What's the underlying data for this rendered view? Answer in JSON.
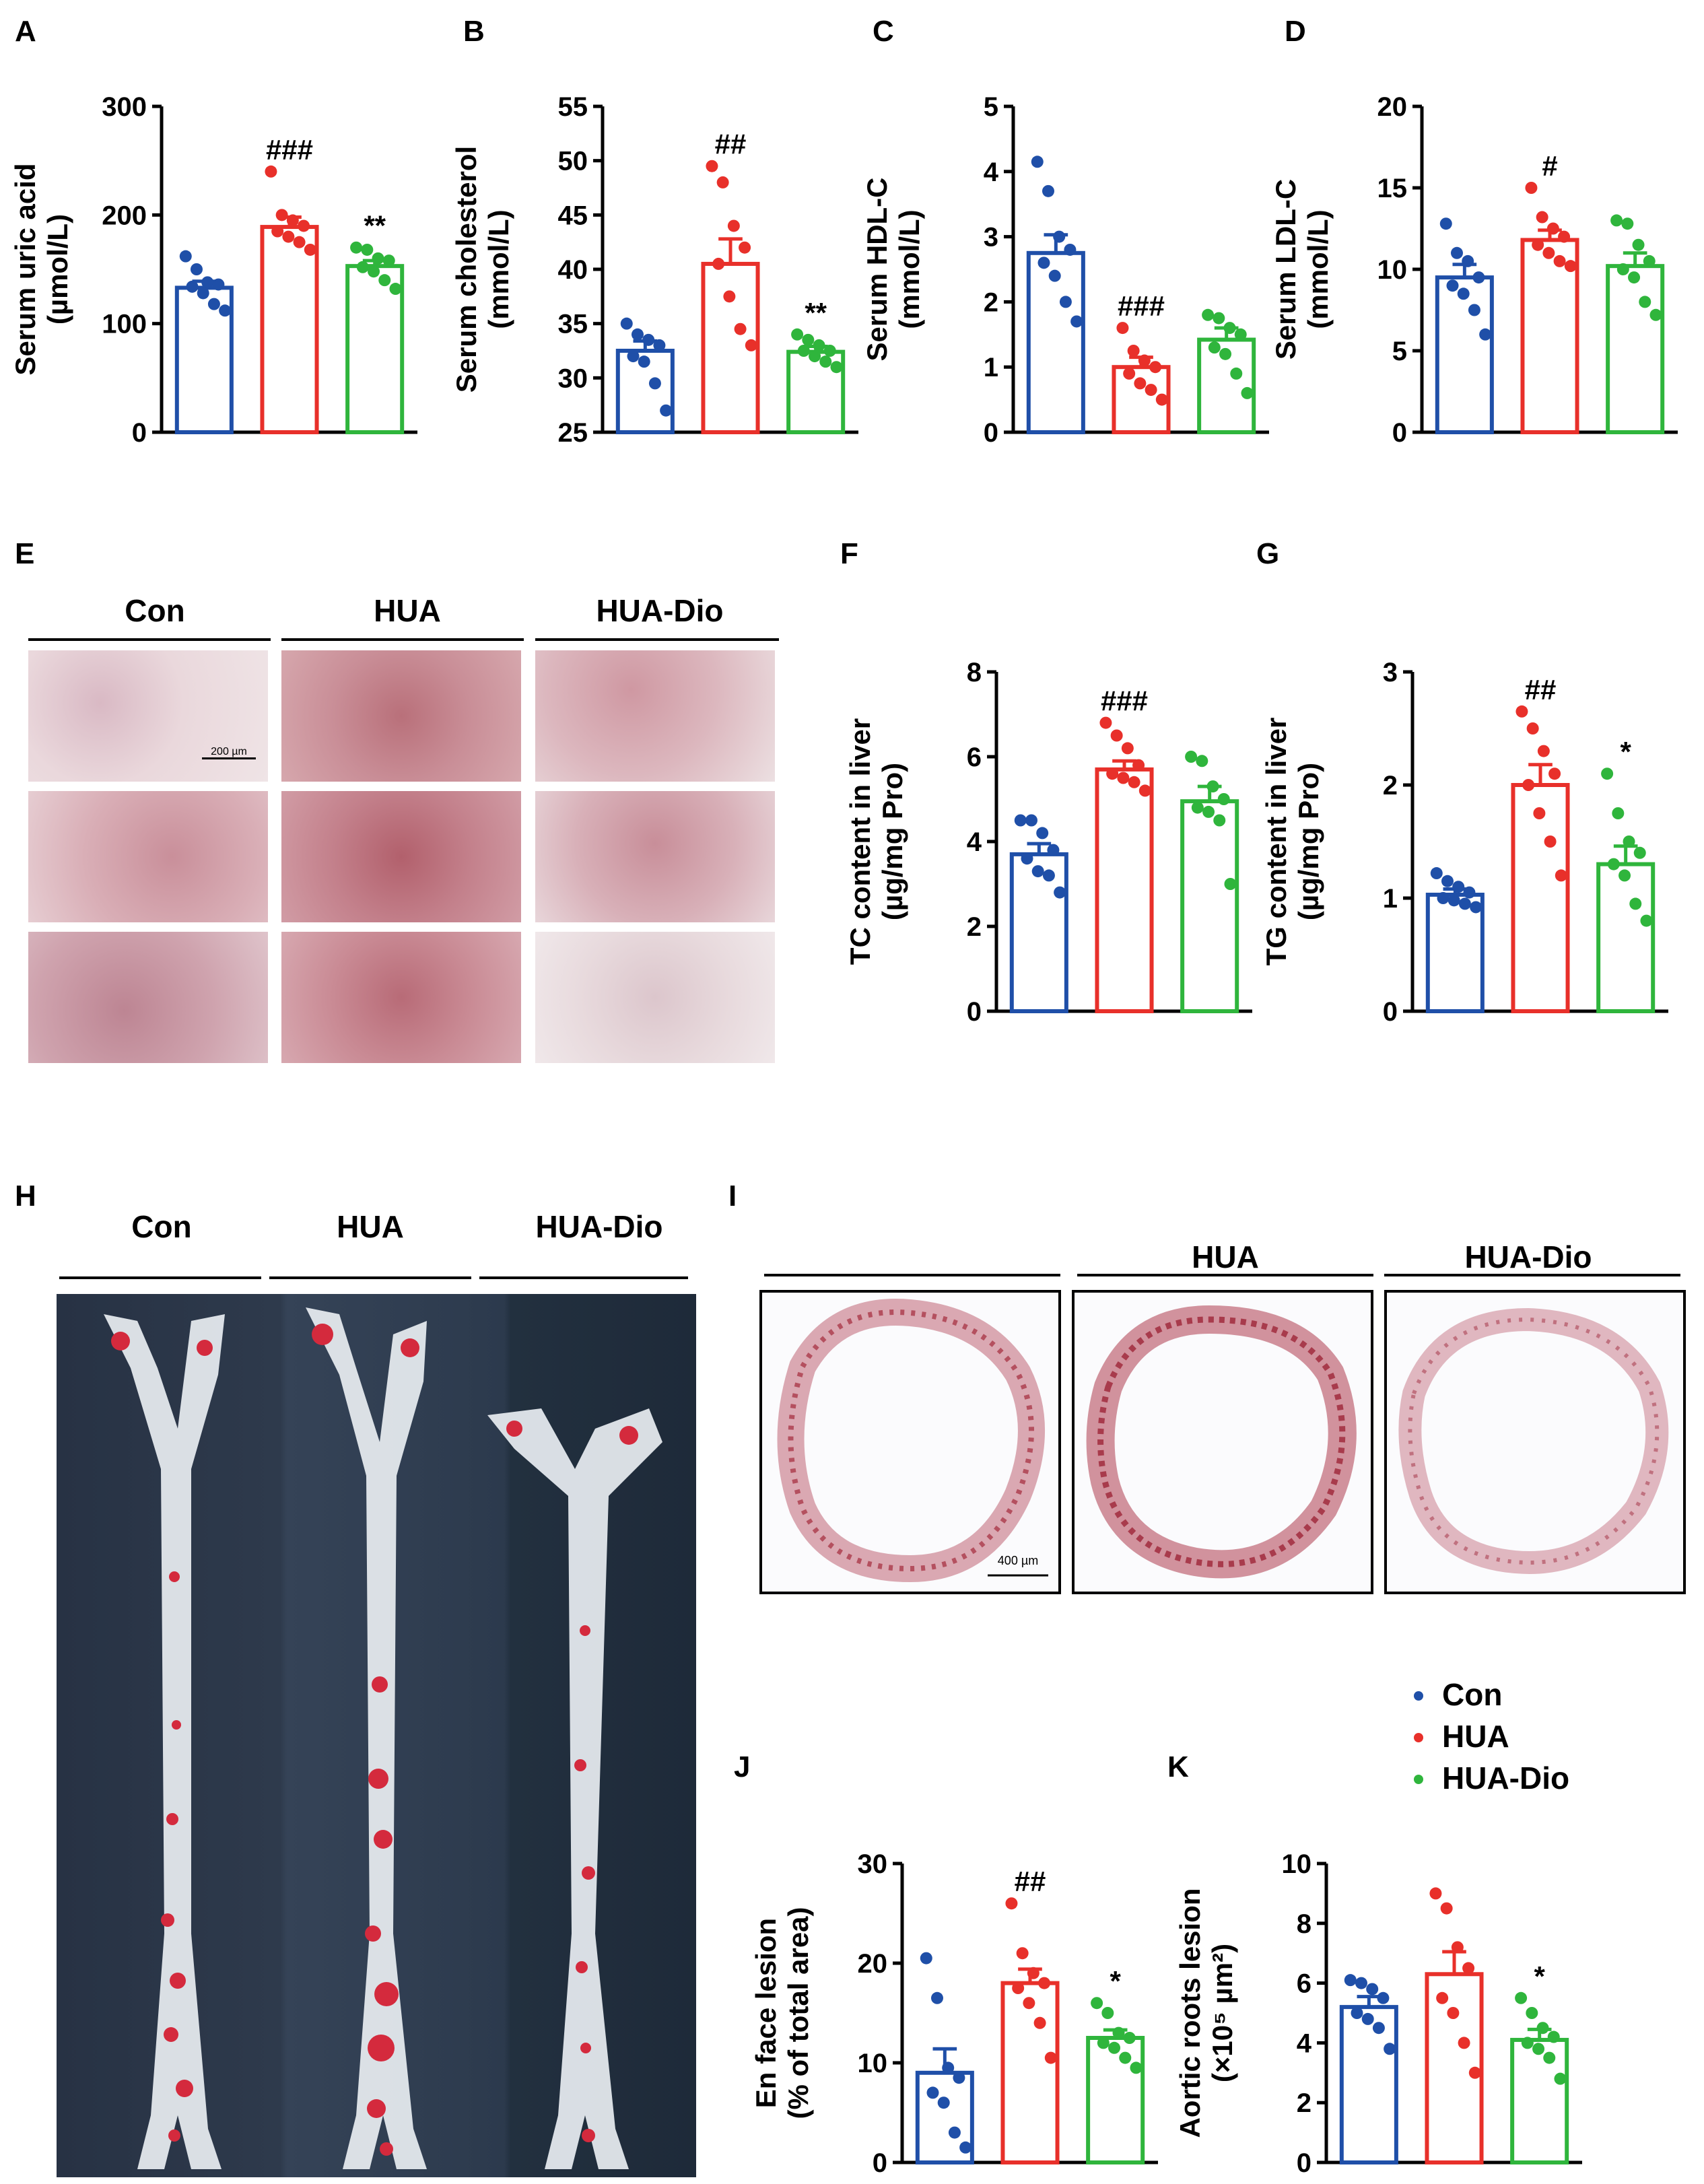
{
  "panels": {
    "A": "A",
    "B": "B",
    "C": "C",
    "D": "D",
    "E": "E",
    "F": "F",
    "G": "G",
    "H": "H",
    "I": "I",
    "J": "J",
    "K": "K"
  },
  "groups": [
    "Con",
    "HUA",
    "HUA-Dio"
  ],
  "colors": {
    "Con": "#1f4fa8",
    "HUA": "#e8302a",
    "HUA-Dio": "#2fb53c"
  },
  "panel_E": {
    "labels": [
      "Con",
      "HUA",
      "HUA-Dio"
    ],
    "scalebar": "200 µm"
  },
  "panel_H": {
    "labels": [
      "Con",
      "HUA",
      "HUA-Dio"
    ]
  },
  "panel_I": {
    "labels": [
      "",
      "HUA",
      "HUA-Dio"
    ],
    "scalebar": "400 µm"
  },
  "legend": {
    "items": [
      "Con",
      "HUA",
      "HUA-Dio"
    ]
  },
  "chart_data": [
    {
      "id": "A",
      "type": "bar",
      "ylabel": [
        "Serum uric acid",
        "(µmol/L)"
      ],
      "ylim": [
        0,
        300
      ],
      "yticks": [
        0,
        100,
        200,
        300
      ],
      "categories": [
        "Con",
        "HUA",
        "HUA-Dio"
      ],
      "means": [
        133,
        189,
        153
      ],
      "sem": [
        6,
        9,
        5
      ],
      "points": [
        [
          162,
          150,
          138,
          136,
          134,
          128,
          118,
          112
        ],
        [
          240,
          200,
          195,
          190,
          185,
          180,
          175,
          168
        ],
        [
          170,
          168,
          160,
          158,
          152,
          148,
          140,
          132
        ]
      ],
      "annotations": [
        "",
        "###",
        "**"
      ]
    },
    {
      "id": "B",
      "type": "bar",
      "ylabel": [
        "Serum cholesterol",
        "(mmol/L)"
      ],
      "ylim": [
        25,
        55
      ],
      "yticks": [
        25,
        30,
        35,
        40,
        45,
        50,
        55
      ],
      "categories": [
        "Con",
        "HUA",
        "HUA-Dio"
      ],
      "means": [
        32.5,
        40.5,
        32.4
      ],
      "sem": [
        0.9,
        2.3,
        0.5
      ],
      "points": [
        [
          35,
          34,
          33.5,
          33,
          32,
          31.5,
          29.5,
          27
        ],
        [
          49.5,
          48,
          44,
          42,
          40.5,
          37.5,
          34.5,
          33
        ],
        [
          34,
          33.5,
          33,
          32.5,
          32.5,
          32,
          31.5,
          31
        ]
      ],
      "annotations": [
        "",
        "##",
        "**"
      ]
    },
    {
      "id": "C",
      "type": "bar",
      "ylabel": [
        "Serum HDL-C",
        "(mmol/L)"
      ],
      "ylim": [
        0,
        5
      ],
      "yticks": [
        0,
        1,
        2,
        3,
        4,
        5
      ],
      "categories": [
        "Con",
        "HUA",
        "HUA-Dio"
      ],
      "means": [
        2.75,
        1.0,
        1.42
      ],
      "sem": [
        0.28,
        0.15,
        0.18
      ],
      "points": [
        [
          4.15,
          3.7,
          3.0,
          2.8,
          2.6,
          2.4,
          2.0,
          1.7
        ],
        [
          1.6,
          1.25,
          1.1,
          1.0,
          0.9,
          0.75,
          0.65,
          0.5
        ],
        [
          1.8,
          1.75,
          1.6,
          1.5,
          1.3,
          1.2,
          0.9,
          0.6
        ]
      ],
      "annotations": [
        "",
        "###",
        ""
      ]
    },
    {
      "id": "D",
      "type": "bar",
      "ylabel": [
        "Serum LDL-C",
        "(mmol/L)"
      ],
      "ylim": [
        0,
        20
      ],
      "yticks": [
        0,
        5,
        10,
        15,
        20
      ],
      "categories": [
        "Con",
        "HUA",
        "HUA-Dio"
      ],
      "means": [
        9.5,
        11.8,
        10.2
      ],
      "sem": [
        0.8,
        0.6,
        0.8
      ],
      "points": [
        [
          12.8,
          11,
          10.5,
          9.5,
          9.0,
          8.5,
          7.5,
          6.0
        ],
        [
          15,
          13.2,
          12.5,
          12,
          11.5,
          11,
          10.5,
          10.2
        ],
        [
          13,
          12.8,
          11.5,
          10.5,
          10,
          9.5,
          8.0,
          7.2
        ]
      ],
      "annotations": [
        "",
        "#",
        ""
      ]
    },
    {
      "id": "F",
      "type": "bar",
      "ylabel": [
        "TC content in liver",
        "(µg/mg Pro)"
      ],
      "ylim": [
        0,
        8
      ],
      "yticks": [
        0,
        2,
        4,
        6,
        8
      ],
      "categories": [
        "Con",
        "HUA",
        "HUA-Dio"
      ],
      "means": [
        3.7,
        5.7,
        4.95
      ],
      "sem": [
        0.25,
        0.2,
        0.35
      ],
      "points": [
        [
          4.5,
          4.5,
          4.2,
          3.8,
          3.6,
          3.3,
          3.2,
          2.8
        ],
        [
          6.8,
          6.5,
          6.2,
          5.8,
          5.6,
          5.5,
          5.4,
          5.2
        ],
        [
          6.0,
          5.9,
          5.3,
          5.0,
          4.8,
          4.7,
          4.5,
          3.0
        ]
      ],
      "annotations": [
        "",
        "###",
        ""
      ]
    },
    {
      "id": "G",
      "type": "bar",
      "ylabel": [
        "TG content in liver",
        "(µg/mg Pro)"
      ],
      "ylim": [
        0,
        3
      ],
      "yticks": [
        0,
        1,
        2,
        3
      ],
      "categories": [
        "Con",
        "HUA",
        "HUA-Dio"
      ],
      "means": [
        1.03,
        2.0,
        1.3
      ],
      "sem": [
        0.05,
        0.18,
        0.16
      ],
      "points": [
        [
          1.22,
          1.15,
          1.1,
          1.05,
          1.0,
          0.98,
          0.95,
          0.92
        ],
        [
          2.65,
          2.5,
          2.3,
          2.1,
          2.0,
          1.75,
          1.5,
          1.2
        ],
        [
          2.1,
          1.75,
          1.5,
          1.4,
          1.3,
          1.2,
          0.95,
          0.8
        ]
      ],
      "annotations": [
        "",
        "##",
        "*"
      ]
    },
    {
      "id": "J",
      "type": "bar",
      "ylabel": [
        "En face lesion",
        "(% of total area)"
      ],
      "ylim": [
        0,
        30
      ],
      "yticks": [
        0,
        10,
        20,
        30
      ],
      "categories": [
        "Con",
        "HUA",
        "HUA-Dio"
      ],
      "means": [
        9.0,
        18.0,
        12.5
      ],
      "sem": [
        2.4,
        1.4,
        0.8
      ],
      "points": [
        [
          20.5,
          16.5,
          9.5,
          8.5,
          7.0,
          6.0,
          3.0,
          1.5
        ],
        [
          26,
          21,
          19,
          18,
          17.5,
          16,
          14,
          10.5
        ],
        [
          16,
          15,
          13,
          12.5,
          12,
          11.5,
          10.5,
          9.5
        ]
      ],
      "annotations": [
        "",
        "##",
        "*"
      ]
    },
    {
      "id": "K",
      "type": "bar",
      "ylabel": [
        "Aortic roots lesion",
        "(×10⁵ µm²)"
      ],
      "ylim": [
        0,
        10
      ],
      "yticks": [
        0,
        2,
        4,
        6,
        8,
        10
      ],
      "categories": [
        "Con",
        "HUA",
        "HUA-Dio"
      ],
      "means": [
        5.2,
        6.3,
        4.1
      ],
      "sem": [
        0.35,
        0.75,
        0.35
      ],
      "points": [
        [
          6.1,
          6.0,
          5.8,
          5.5,
          5.0,
          4.8,
          4.5,
          3.8
        ],
        [
          9.0,
          8.5,
          7.2,
          6.5,
          5.5,
          5.0,
          4.0,
          3.0
        ],
        [
          5.5,
          5.0,
          4.5,
          4.2,
          4.0,
          3.8,
          3.5,
          2.8
        ]
      ],
      "annotations": [
        "",
        "",
        "*"
      ]
    }
  ]
}
